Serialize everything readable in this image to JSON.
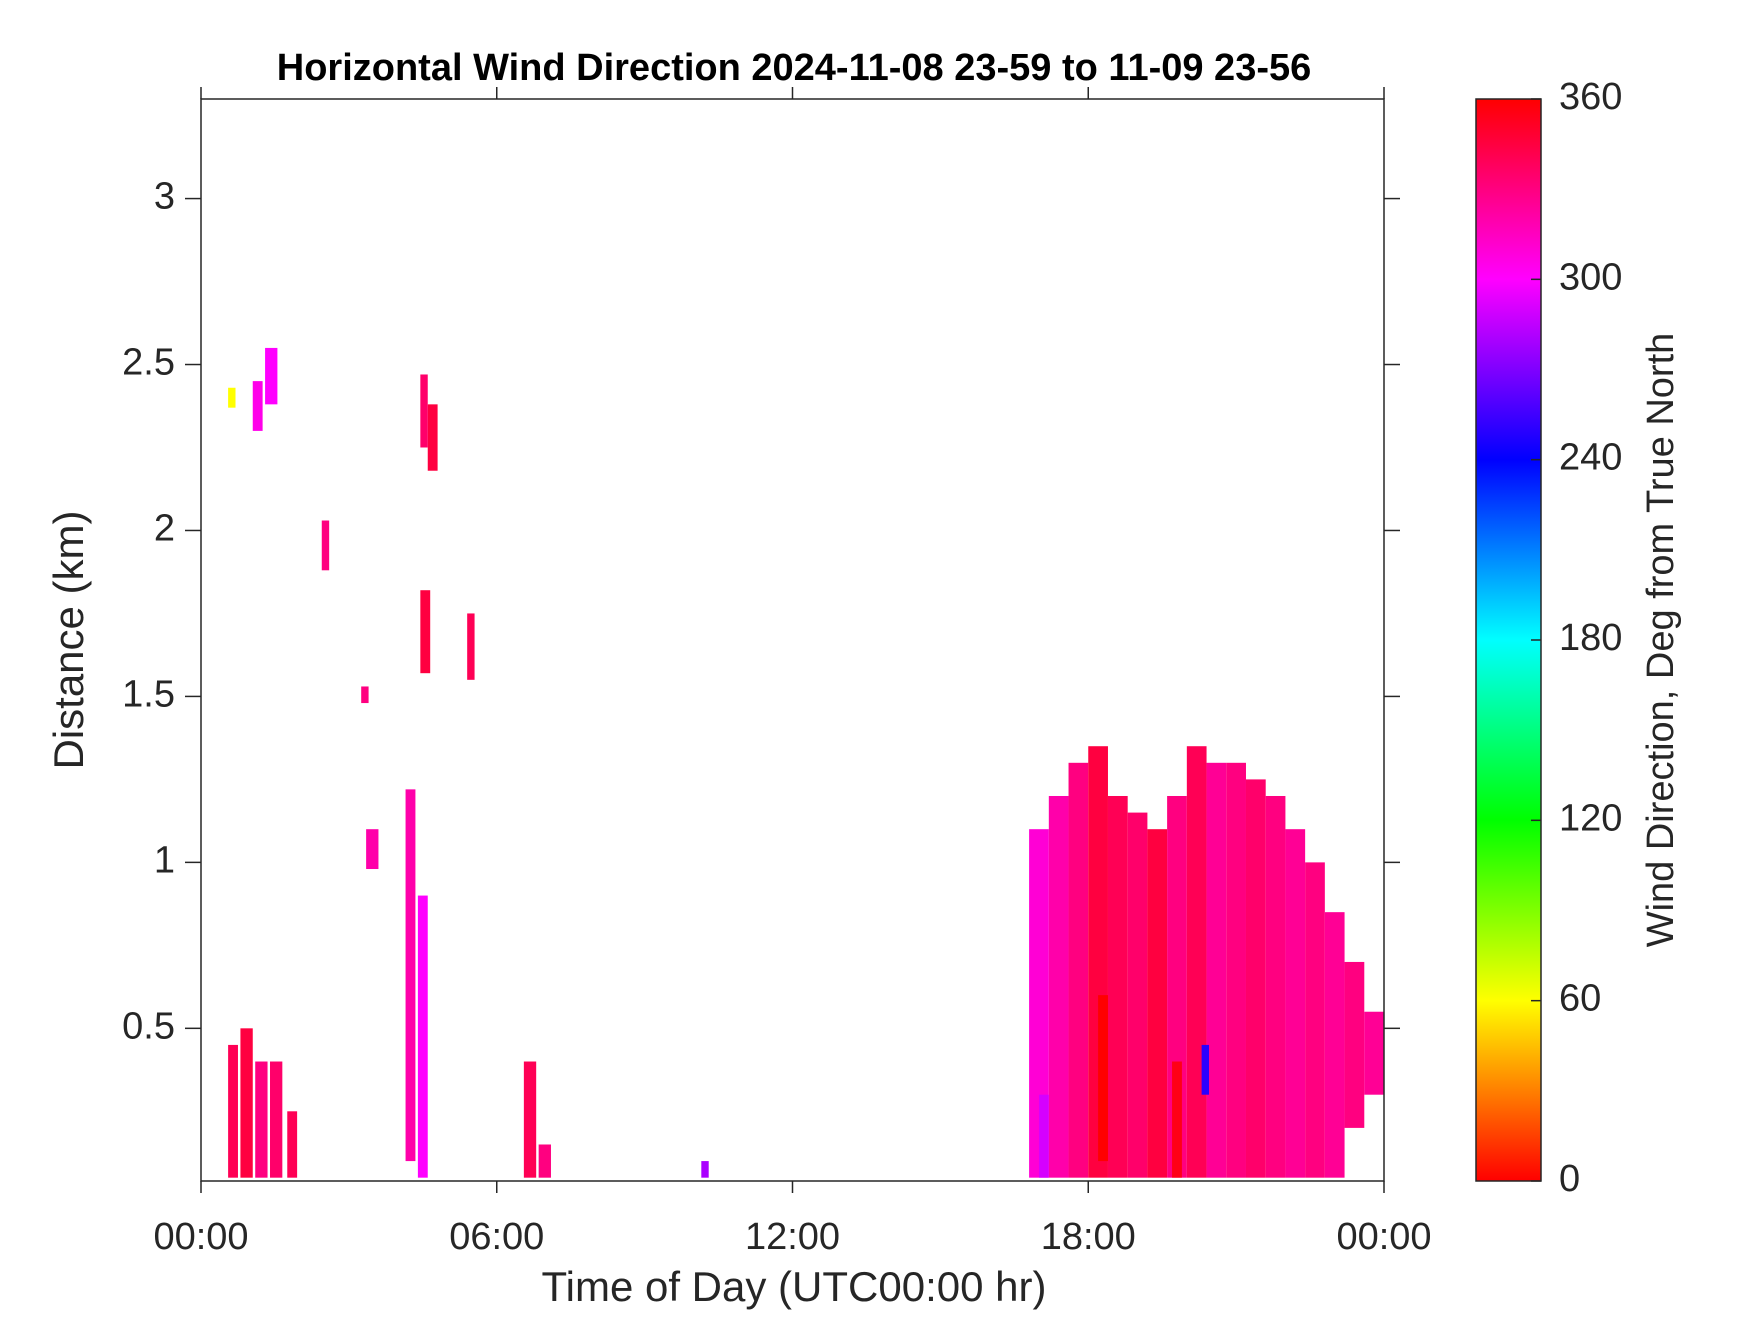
{
  "chart_data": {
    "type": "heatmap",
    "title": "Horizontal Wind Direction 2024-11-08 23-59 to 11-09 23-56",
    "x_label": "Time of Day (UTC00:00 hr)",
    "y_label": "Distance (km)",
    "colorbar_label": "Wind Direction, Deg from True North",
    "colormap": "hsv",
    "xlim": [
      0,
      24
    ],
    "xticks": [
      {
        "value": 0,
        "label": "00:00"
      },
      {
        "value": 6,
        "label": "06:00"
      },
      {
        "value": 12,
        "label": "12:00"
      },
      {
        "value": 18,
        "label": "18:00"
      },
      {
        "value": 24,
        "label": "00:00"
      }
    ],
    "ylim": [
      0.04,
      3.3
    ],
    "yticks": [
      0.5,
      1,
      1.5,
      2,
      2.5,
      3
    ],
    "clim": [
      0,
      360
    ],
    "cticks": [
      0,
      60,
      120,
      180,
      240,
      300,
      360
    ],
    "cells": {
      "x0": [
        0.55,
        0.8,
        1.1,
        1.4,
        1.75,
        1.05,
        1.3,
        0.55,
        2.45,
        3.25,
        3.35,
        4.15,
        4.4,
        4.45,
        4.6,
        4.45,
        5.4,
        6.55,
        6.85,
        10.15,
        16.8,
        17.2,
        17.6,
        18.0,
        18.4,
        18.8,
        19.2,
        19.6,
        20.0,
        20.4,
        20.8,
        21.2,
        21.6,
        22.0,
        22.4,
        22.8,
        23.2,
        23.6,
        17.0,
        18.2,
        19.7,
        20.3
      ],
      "x1": [
        0.75,
        1.05,
        1.35,
        1.65,
        1.95,
        1.25,
        1.55,
        0.7,
        2.6,
        3.4,
        3.6,
        4.35,
        4.6,
        4.65,
        4.8,
        4.6,
        5.55,
        6.8,
        7.1,
        10.3,
        17.2,
        17.6,
        18.0,
        18.4,
        18.8,
        19.2,
        19.6,
        20.0,
        20.4,
        20.8,
        21.2,
        21.6,
        22.0,
        22.4,
        22.8,
        23.2,
        23.6,
        24.0,
        17.2,
        18.4,
        19.9,
        20.45
      ],
      "y0": [
        0.05,
        0.05,
        0.05,
        0.05,
        0.05,
        2.3,
        2.38,
        2.37,
        1.88,
        1.48,
        0.98,
        0.1,
        0.05,
        1.57,
        2.18,
        2.25,
        1.55,
        0.05,
        0.05,
        0.05,
        0.05,
        0.05,
        0.05,
        0.05,
        0.05,
        0.05,
        0.05,
        0.05,
        0.05,
        0.05,
        0.05,
        0.05,
        0.05,
        0.05,
        0.05,
        0.05,
        0.2,
        0.3,
        0.05,
        0.1,
        0.05,
        0.3
      ],
      "y1": [
        0.45,
        0.5,
        0.4,
        0.4,
        0.25,
        2.45,
        2.55,
        2.43,
        2.03,
        1.53,
        1.1,
        1.22,
        0.9,
        1.82,
        2.38,
        2.47,
        1.75,
        0.4,
        0.15,
        0.1,
        1.1,
        1.2,
        1.3,
        1.35,
        1.2,
        1.15,
        1.1,
        1.2,
        1.35,
        1.3,
        1.3,
        1.25,
        1.2,
        1.1,
        1.0,
        0.85,
        0.7,
        0.55,
        0.3,
        0.6,
        0.4,
        0.45
      ],
      "values": [
        340,
        345,
        330,
        335,
        340,
        305,
        300,
        60,
        330,
        330,
        320,
        320,
        300,
        345,
        345,
        335,
        340,
        340,
        330,
        280,
        310,
        320,
        330,
        345,
        340,
        335,
        345,
        330,
        340,
        325,
        330,
        335,
        330,
        325,
        330,
        325,
        330,
        325,
        290,
        0,
        355,
        250
      ]
    }
  }
}
